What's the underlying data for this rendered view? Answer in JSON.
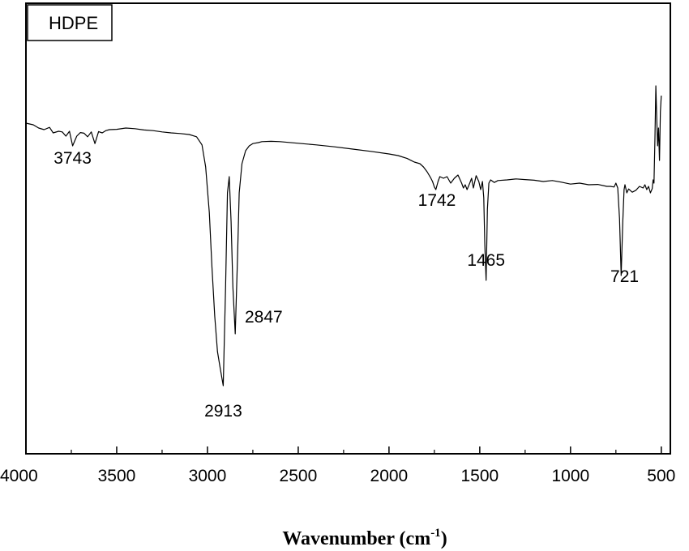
{
  "chart_data": {
    "type": "line",
    "legend": {
      "label": "HDPE",
      "placement": "top-left"
    },
    "xlabel": {
      "text": "Wavenumber (cm",
      "sup": "-1",
      "close": ")"
    },
    "ylabel": "",
    "xlim": [
      4000,
      450
    ],
    "ylim": [
      0,
      100
    ],
    "x_reversed": true,
    "grid": false,
    "x_ticks": [
      4000,
      3500,
      3000,
      2500,
      2000,
      1500,
      1000,
      500
    ],
    "x_tick_labels": [
      "4000",
      "3500",
      "3000",
      "2500",
      "2000",
      "1500",
      "1000",
      "500"
    ],
    "series": [
      {
        "color": "#000000",
        "x": [
          4000,
          3960,
          3930,
          3900,
          3870,
          3850,
          3820,
          3800,
          3780,
          3760,
          3743,
          3720,
          3700,
          3680,
          3660,
          3640,
          3620,
          3600,
          3580,
          3560,
          3540,
          3500,
          3450,
          3400,
          3350,
          3300,
          3250,
          3200,
          3150,
          3100,
          3060,
          3030,
          3010,
          2990,
          2975,
          2960,
          2945,
          2930,
          2913,
          2900,
          2890,
          2880,
          2870,
          2860,
          2847,
          2835,
          2825,
          2810,
          2790,
          2770,
          2750,
          2720,
          2700,
          2650,
          2600,
          2500,
          2400,
          2300,
          2200,
          2100,
          2000,
          1950,
          1900,
          1860,
          1830,
          1810,
          1790,
          1770,
          1760,
          1750,
          1742,
          1730,
          1720,
          1700,
          1680,
          1660,
          1640,
          1620,
          1600,
          1590,
          1580,
          1570,
          1555,
          1545,
          1535,
          1520,
          1505,
          1495,
          1485,
          1478,
          1472,
          1465,
          1458,
          1450,
          1440,
          1420,
          1400,
          1350,
          1300,
          1250,
          1200,
          1150,
          1100,
          1050,
          1000,
          950,
          900,
          850,
          800,
          780,
          760,
          750,
          740,
          730,
          721,
          712,
          705,
          700,
          690,
          680,
          660,
          640,
          620,
          600,
          590,
          580,
          570,
          560,
          550,
          545,
          540,
          535,
          530,
          525,
          520,
          515,
          510,
          505,
          500
        ],
        "y": [
          84.5,
          84.0,
          83.0,
          82.5,
          83.2,
          81.5,
          82.0,
          81.8,
          80.5,
          82.0,
          77.5,
          80.5,
          81.6,
          81.4,
          80.3,
          81.8,
          78.2,
          81.9,
          81.5,
          82.2,
          82.5,
          82.6,
          83.0,
          82.8,
          82.4,
          82.2,
          81.8,
          81.5,
          81.3,
          81.0,
          80.3,
          77.8,
          71.0,
          57.0,
          40.0,
          25.0,
          14.0,
          9.0,
          3.5,
          34.0,
          63.0,
          68.0,
          54.0,
          34.0,
          19.5,
          42.0,
          63.0,
          72.0,
          76.0,
          77.5,
          78.2,
          78.5,
          78.8,
          78.9,
          78.8,
          78.3,
          77.8,
          77.2,
          76.5,
          75.8,
          75.0,
          74.5,
          73.6,
          72.5,
          72.0,
          71.0,
          69.5,
          67.6,
          66.5,
          64.8,
          64.0,
          66.5,
          68.0,
          67.5,
          68.0,
          66.0,
          67.5,
          68.5,
          66.0,
          64.5,
          65.5,
          64.0,
          66.0,
          67.5,
          64.5,
          68.3,
          66.5,
          64.0,
          66.5,
          61.5,
          47.0,
          36.0,
          58.0,
          66.0,
          67.0,
          66.2,
          66.8,
          67.0,
          67.3,
          67.1,
          66.9,
          66.5,
          66.8,
          66.3,
          65.7,
          66.0,
          65.5,
          65.6,
          65.0,
          65.0,
          64.8,
          66.0,
          64.5,
          55.0,
          37.5,
          54.0,
          64.0,
          65.5,
          63.0,
          64.2,
          63.2,
          63.8,
          65.0,
          64.5,
          65.5,
          64.0,
          65.0,
          63.0,
          64.3,
          67.0,
          66.0,
          80.0,
          96.0,
          86.0,
          77.5,
          83.0,
          73.0,
          88.0,
          93.0
        ]
      }
    ],
    "annotations": [
      {
        "text": "3743",
        "x": 3743,
        "y": 72.0
      },
      {
        "text": "2913",
        "x": 2913,
        "y": -6.0
      },
      {
        "text": "2847",
        "x": 2690,
        "y": 23.0
      },
      {
        "text": "1742",
        "x": 1736,
        "y": 59.0
      },
      {
        "text": "1465",
        "x": 1465,
        "y": 40.5
      },
      {
        "text": "721",
        "x": 702,
        "y": 35.5
      }
    ]
  }
}
